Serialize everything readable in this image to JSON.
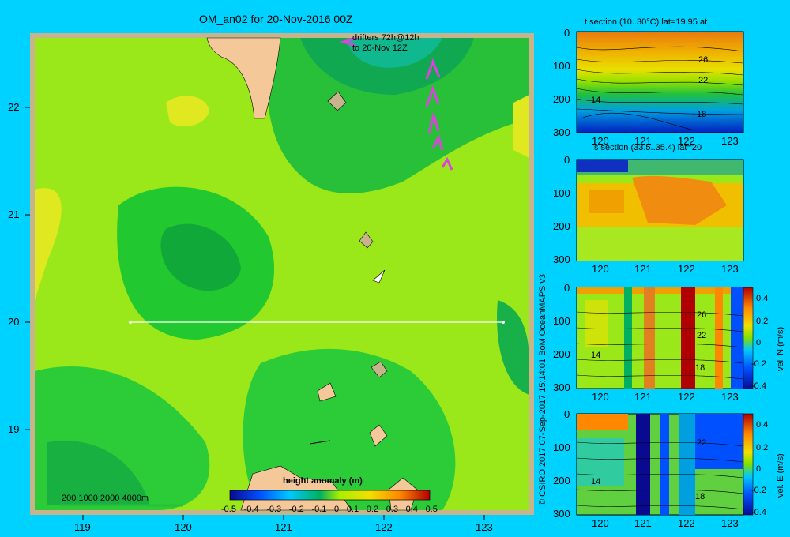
{
  "main": {
    "title": "OM_an02 for 20-Nov-2016 00Z",
    "drifters_line1": "drifters 72h@12h",
    "drifters_line2": "to 20-Nov 12Z",
    "depth_legend": "200  1000  2000  4000m",
    "colorbar_title": "height anomaly (m)",
    "colorbar_ticks": [
      "-0.5",
      "-0.4",
      "-0.3",
      "-0.2",
      "-0.1",
      "0",
      "0.1",
      "0.2",
      "0.3",
      "0.4",
      "0.5"
    ],
    "lon_ticks": [
      "119",
      "120",
      "121",
      "122",
      "123"
    ],
    "lat_ticks": [
      "22",
      "21",
      "20",
      "19"
    ],
    "section_lat": 20,
    "section_lon_range": [
      119.5,
      123.2
    ]
  },
  "credit": "© CSIRO 2017   07-Sep-2017 15:14:01 BoM OceanMAPS v3",
  "panels": [
    {
      "title": "t section (10..30°C) lat=19.95 at",
      "contour_labels": [
        "26",
        "22",
        "14",
        "18"
      ],
      "colorbar": false
    },
    {
      "title": "s section (33.5..35.4) lat=20",
      "contour_labels": [],
      "colorbar": false
    },
    {
      "title": "",
      "contour_labels": [
        "26",
        "22",
        "14",
        "18"
      ],
      "colorbar": true,
      "cb_label": "vel. N (m/s)"
    },
    {
      "title": "",
      "contour_labels": [
        "22",
        "14",
        "18"
      ],
      "colorbar": true,
      "cb_label": "vel. E (m/s)"
    }
  ],
  "panel_y_ticks": [
    "0",
    "100",
    "200",
    "300"
  ],
  "panel_x_ticks": [
    "120",
    "121",
    "122",
    "123"
  ],
  "panel_cb_ticks": [
    "0.4",
    "0.2",
    "0",
    "-0.2",
    "-0.4"
  ],
  "chart_data": {
    "type": "heatmap",
    "title": "OM_an02 for 20-Nov-2016 00Z",
    "variable": "height anomaly (m)",
    "xlim": [
      118.5,
      123.5
    ],
    "ylim": [
      18.2,
      22.7
    ],
    "clim": [
      -0.5,
      0.5
    ],
    "x_ticks": [
      119,
      120,
      121,
      122,
      123
    ],
    "y_ticks": [
      19,
      20,
      21,
      22
    ],
    "sections": [
      {
        "name": "t section",
        "range": "10..30°C",
        "lat": 19.95,
        "ylim": [
          300,
          0
        ],
        "xlim": [
          119.5,
          123.2
        ]
      },
      {
        "name": "s section",
        "range": "33.5..35.4",
        "lat": 20,
        "ylim": [
          300,
          0
        ],
        "xlim": [
          119.5,
          123.2
        ]
      },
      {
        "name": "vel. N (m/s)",
        "clim": [
          -0.4,
          0.4
        ],
        "ylim": [
          300,
          0
        ],
        "xlim": [
          119.5,
          123.2
        ]
      },
      {
        "name": "vel. E (m/s)",
        "clim": [
          -0.4,
          0.4
        ],
        "ylim": [
          300,
          0
        ],
        "xlim": [
          119.5,
          123.2
        ]
      }
    ]
  }
}
